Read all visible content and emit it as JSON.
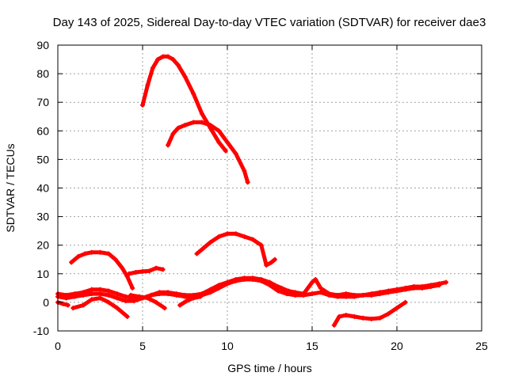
{
  "chart_data": {
    "type": "line",
    "title": "Day 143 of 2025, Sidereal Day-to-day VTEC variation (SDTVAR) for receiver dae3",
    "xlabel": "GPS time / hours",
    "ylabel": "SDTVAR / TECUs",
    "xlim": [
      0,
      25
    ],
    "ylim": [
      -10,
      90
    ],
    "xticks": [
      0,
      5,
      10,
      15,
      20,
      25
    ],
    "yticks": [
      -10,
      0,
      10,
      20,
      30,
      40,
      50,
      60,
      70,
      80,
      90
    ],
    "xtick_labels": [
      "0",
      "5",
      "10",
      "15",
      "20",
      "25"
    ],
    "ytick_labels": [
      "-10",
      "0",
      "10",
      "20",
      "30",
      "40",
      "50",
      "60",
      "70",
      "80",
      "90"
    ],
    "grid": true,
    "legend": "none",
    "marker": "plus",
    "color": "#ff0000",
    "series": [
      {
        "name": "arc-high-peak",
        "x": [
          5.0,
          5.3,
          5.6,
          5.9,
          6.2,
          6.5,
          6.8,
          7.1,
          7.5,
          8.0,
          8.5,
          9.0,
          9.5,
          9.9
        ],
        "y": [
          69,
          76,
          82,
          85,
          86,
          86,
          85,
          83,
          79,
          73,
          66,
          61,
          56,
          53
        ]
      },
      {
        "name": "arc-second-peak",
        "x": [
          6.5,
          6.8,
          7.1,
          7.5,
          8.0,
          8.5,
          9.0,
          9.5,
          10.0,
          10.5,
          11.0,
          11.2
        ],
        "y": [
          55,
          59,
          61,
          62,
          63,
          63,
          62,
          60,
          56,
          52,
          46,
          42
        ]
      },
      {
        "name": "arc-mid-hump",
        "x": [
          8.2,
          8.6,
          9.0,
          9.5,
          10.0,
          10.5,
          11.0,
          11.5,
          12.0,
          12.3,
          12.6,
          12.8
        ],
        "y": [
          17,
          19,
          21,
          23,
          24,
          24,
          23,
          22,
          20,
          13,
          14,
          15
        ]
      },
      {
        "name": "arc-early-hump",
        "x": [
          0.8,
          1.2,
          1.6,
          2.0,
          2.5,
          3.0,
          3.4,
          3.8,
          4.1,
          4.4
        ],
        "y": [
          14,
          16,
          17,
          17.5,
          17.5,
          17,
          15,
          12,
          9,
          5
        ]
      },
      {
        "name": "arc-short-a",
        "x": [
          4.2,
          4.6,
          5.0,
          5.4,
          5.8,
          6.2
        ],
        "y": [
          10,
          10.5,
          10.8,
          11,
          12,
          11.5
        ]
      },
      {
        "name": "arc-base-long",
        "x": [
          0.0,
          0.5,
          1.0,
          1.5,
          2.0,
          2.5,
          3.0,
          3.5,
          4.0,
          4.5,
          5.0,
          5.5,
          6.0,
          6.5,
          7.0,
          7.5,
          8.0,
          8.5,
          9.0,
          9.5,
          10.0,
          10.5,
          11.0,
          11.5,
          12.0,
          12.5,
          12.8,
          13.2,
          13.6,
          14.0,
          14.5,
          15.0,
          15.2,
          15.5,
          16.0,
          16.5,
          17.0,
          17.5,
          18.0,
          18.5,
          19.0,
          19.5,
          20.0,
          20.5,
          21.0,
          21.5,
          22.0,
          22.5,
          22.9
        ],
        "y": [
          3,
          2.5,
          3,
          3.5,
          4.5,
          4.5,
          4,
          3,
          2,
          1.5,
          1.5,
          2.5,
          3.5,
          3.5,
          3,
          2.5,
          2.5,
          3,
          4.5,
          6,
          7,
          8,
          8.5,
          8.5,
          8,
          7,
          6,
          5,
          4,
          3.5,
          3,
          7,
          8,
          5,
          3,
          2.5,
          3,
          2.5,
          2.5,
          3,
          3.5,
          4,
          4.5,
          5,
          5.5,
          5.5,
          6,
          6.5,
          7
        ]
      },
      {
        "name": "arc-base-second",
        "x": [
          0.0,
          0.5,
          1.0,
          1.5,
          2.0,
          2.5,
          3.0,
          3.5,
          4.0,
          4.5,
          5.0,
          5.5,
          6.0,
          6.5,
          7.0,
          7.5,
          8.0,
          8.5,
          9.0,
          9.5,
          10.0,
          10.5,
          11.0,
          11.5,
          12.0,
          12.5,
          13.0,
          13.5,
          14.0,
          14.5,
          15.0,
          15.5,
          16.0,
          16.5,
          17.0,
          17.5,
          18.0,
          18.5,
          19.0,
          19.5,
          20.0,
          20.5,
          21.0,
          21.5,
          22.0,
          22.5
        ],
        "y": [
          2,
          1.5,
          2,
          2.5,
          3,
          3,
          2.5,
          1.5,
          0.5,
          0.5,
          1.5,
          2.5,
          3,
          3,
          2.5,
          2,
          2,
          2.5,
          3.5,
          5,
          6.5,
          7.5,
          8,
          8,
          7.5,
          6,
          4,
          3,
          2.5,
          2.5,
          3,
          3.5,
          2.5,
          2,
          2,
          2,
          2.5,
          2.5,
          3,
          3.5,
          4,
          4.5,
          5,
          5,
          5.5,
          6
        ]
      },
      {
        "name": "arc-drop-a",
        "x": [
          0.0,
          0.3,
          0.6
        ],
        "y": [
          0,
          -0.5,
          -1
        ]
      },
      {
        "name": "arc-drop-b",
        "x": [
          0.9,
          1.5,
          2.0,
          2.5,
          3.0,
          3.5,
          4.1
        ],
        "y": [
          -2,
          -1,
          1,
          1.5,
          0,
          -2,
          -5
        ]
      },
      {
        "name": "arc-drop-c",
        "x": [
          4.3,
          4.8,
          5.3,
          5.8,
          6.3
        ],
        "y": [
          2.5,
          2,
          1.5,
          0,
          -2
        ]
      },
      {
        "name": "arc-drop-d",
        "x": [
          7.2,
          7.6,
          8.0,
          8.4
        ],
        "y": [
          -1,
          0.5,
          1.5,
          2
        ]
      },
      {
        "name": "arc-negative",
        "x": [
          16.3,
          16.6,
          17.0,
          17.5,
          18.0,
          18.5,
          19.0,
          19.5,
          20.0,
          20.5
        ],
        "y": [
          -8,
          -5,
          -4.5,
          -5,
          -5.5,
          -5.8,
          -5.5,
          -4,
          -2,
          0
        ]
      }
    ]
  }
}
